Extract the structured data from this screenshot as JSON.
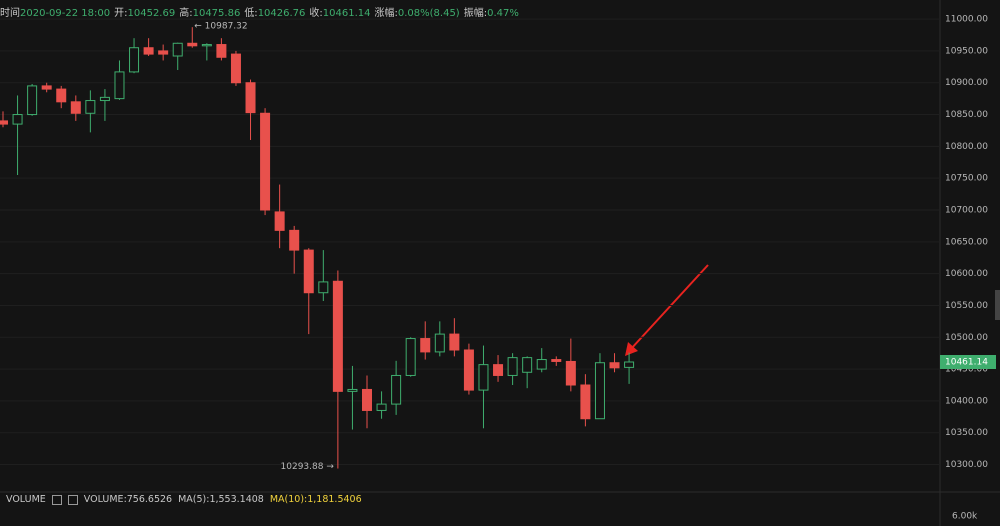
{
  "header": [
    {
      "label": "时间",
      "value": "2020-09-22 18:00"
    },
    {
      "label": "开:",
      "value": "10452.69"
    },
    {
      "label": "高:",
      "value": "10475.86"
    },
    {
      "label": "低:",
      "value": "10426.76"
    },
    {
      "label": "收:",
      "value": "10461.14"
    },
    {
      "label": "涨幅:",
      "value": "0.08%(8.45)"
    },
    {
      "label": "振幅:",
      "value": "0.47%"
    }
  ],
  "chart_data": {
    "type": "candlestick",
    "up_color": "#3fae6e",
    "down_color": "#e8514c",
    "open": [
      10840,
      10835,
      10850,
      10895,
      10890,
      10870,
      10852,
      10872,
      10875,
      10917,
      10955,
      10950,
      10942,
      10962,
      10958,
      10960,
      10945,
      10900,
      10852,
      10697,
      10668,
      10637,
      10570,
      10588,
      10415,
      10418,
      10385,
      10395,
      10440,
      10498,
      10477,
      10505,
      10480,
      10417,
      10457,
      10440,
      10445,
      10450,
      10465,
      10462,
      10425,
      10372,
      10460,
      10452.69
    ],
    "high": [
      10855,
      10880,
      10898,
      10900,
      10895,
      10880,
      10888,
      10890,
      10935,
      10970,
      10970,
      10960,
      10963,
      10987.32,
      10962,
      10970,
      10950,
      10905,
      10860,
      10740,
      10675,
      10640,
      10637,
      10605,
      10455,
      10440,
      10415,
      10463,
      10500,
      10525,
      10525,
      10530,
      10490,
      10487,
      10472,
      10475,
      10470,
      10483,
      10470,
      10498,
      10442,
      10475,
      10475,
      10475.86
    ],
    "low": [
      10830,
      10755,
      10848,
      10885,
      10860,
      10840,
      10822,
      10840,
      10873,
      10915,
      10942,
      10935,
      10920,
      10955,
      10935,
      10935,
      10895,
      10810,
      10692,
      10640,
      10600,
      10505,
      10557,
      10293.88,
      10355,
      10357,
      10372,
      10378,
      10438,
      10465,
      10470,
      10470,
      10410,
      10357,
      10430,
      10425,
      10420,
      10445,
      10455,
      10415,
      10360,
      10372,
      10445,
      10426.76
    ],
    "close": [
      10835,
      10850,
      10895,
      10890,
      10870,
      10852,
      10872,
      10877,
      10917,
      10955,
      10945,
      10945,
      10962,
      10958,
      10960,
      10940,
      10900,
      10853,
      10700,
      10668,
      10637,
      10570,
      10587,
      10415,
      10418,
      10385,
      10395,
      10440,
      10498,
      10477,
      10505,
      10480,
      10417,
      10457,
      10440,
      10468,
      10468,
      10465,
      10462,
      10425,
      10372,
      10460,
      10452,
      10461.14
    ],
    "ylim": [
      10260,
      11030
    ],
    "yticks": [
      {
        "value": 11000,
        "label": "11000.00"
      },
      {
        "value": 10950,
        "label": "10950.00"
      },
      {
        "value": 10900,
        "label": "10900.00"
      },
      {
        "value": 10850,
        "label": "10850.00"
      },
      {
        "value": 10800,
        "label": "10800.00"
      },
      {
        "value": 10750,
        "label": "10750.00"
      },
      {
        "value": 10700,
        "label": "10700.00"
      },
      {
        "value": 10650,
        "label": "10650.00"
      },
      {
        "value": 10600,
        "label": "10600.00"
      },
      {
        "value": 10550,
        "label": "10550.00"
      },
      {
        "value": 10500,
        "label": "10500.00"
      },
      {
        "value": 10450,
        "label": "10450.00"
      },
      {
        "value": 10400,
        "label": "10400.00"
      },
      {
        "value": 10350,
        "label": "10350.00"
      },
      {
        "value": 10300,
        "label": "10300.00"
      }
    ],
    "grid": true,
    "annotations": {
      "high": "← 10987.32",
      "low": "10293.88 →"
    },
    "last_price": {
      "value": 10461.14,
      "label": "10461.14"
    }
  },
  "volume_legend": {
    "name": "VOLUME",
    "items": [
      "VOLUME:756.6526",
      "MA(5):1,553.1408",
      "MA(10):1,181.5406"
    ],
    "axis_label": "6.00k"
  }
}
